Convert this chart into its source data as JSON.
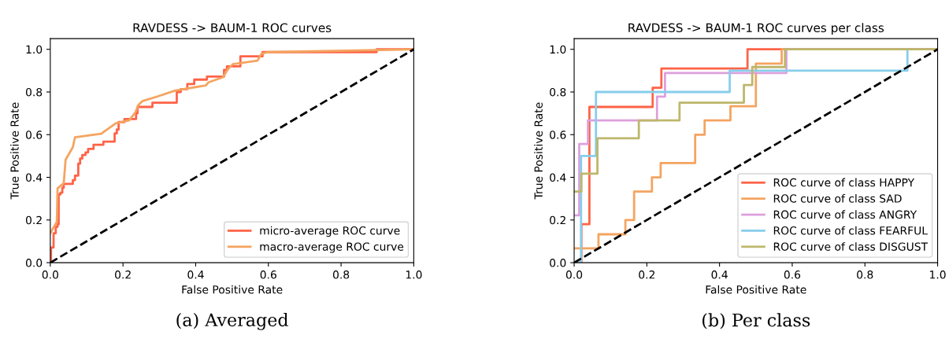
{
  "chart_data": [
    {
      "type": "line",
      "title": "RAVDESS -> BAUM-1 ROC curves",
      "xlabel": "False Positive Rate",
      "ylabel": "True Positive Rate",
      "annotations": [
        "(a) Averaged"
      ],
      "legend": "lower right",
      "grid": false,
      "xlim": [
        0,
        1
      ],
      "ylim": [
        0,
        1.05
      ],
      "xticks": [
        {
          "value": 0,
          "label": "0.0"
        },
        {
          "value": 0.2,
          "label": "0.2"
        },
        {
          "value": 0.4,
          "label": "0.4"
        },
        {
          "value": 0.6,
          "label": "0.6"
        },
        {
          "value": 0.8,
          "label": "0.8"
        },
        {
          "value": 1,
          "label": "1.0"
        }
      ],
      "yticks": [
        {
          "value": 0,
          "label": "0.0"
        },
        {
          "value": 0.2,
          "label": "0.2"
        },
        {
          "value": 0.4,
          "label": "0.4"
        },
        {
          "value": 0.6,
          "label": "0.6"
        },
        {
          "value": 0.8,
          "label": "0.8"
        },
        {
          "value": 1,
          "label": "1.0"
        }
      ],
      "series": [
        {
          "name": "micro-average ROC curve",
          "type": "step",
          "color": "#ff6347",
          "x": [
            0,
            0.002,
            0.009,
            0.015,
            0.02,
            0.023,
            0.028,
            0.033,
            0.037,
            0.062,
            0.068,
            0.077,
            0.082,
            0.088,
            0.097,
            0.104,
            0.119,
            0.146,
            0.177,
            0.183,
            0.188,
            0.204,
            0.236,
            0.24,
            0.281,
            0.348,
            0.359,
            0.377,
            0.396,
            0.431,
            0.478,
            0.486,
            0.523,
            0.584,
            0.898,
            1
          ],
          "values": [
            0,
            0.071,
            0.138,
            0.168,
            0.18,
            0.32,
            0.328,
            0.351,
            0.369,
            0.387,
            0.408,
            0.464,
            0.488,
            0.505,
            0.517,
            0.533,
            0.553,
            0.567,
            0.606,
            0.624,
            0.659,
            0.673,
            0.7,
            0.73,
            0.75,
            0.8,
            0.813,
            0.837,
            0.858,
            0.872,
            0.904,
            0.92,
            0.967,
            0.987,
            1,
            1
          ]
        },
        {
          "name": "macro-average ROC curve",
          "type": "line",
          "color": "#f4a460",
          "x": [
            0,
            0.018,
            0.02,
            0.037,
            0.042,
            0.062,
            0.068,
            0.14,
            0.18,
            0.217,
            0.235,
            0.242,
            0.253,
            0.293,
            0.344,
            0.428,
            0.435,
            0.475,
            0.489,
            0.502,
            0.57,
            0.581,
            0.599,
            1
          ],
          "values": [
            0.138,
            0.192,
            0.348,
            0.372,
            0.482,
            0.541,
            0.588,
            0.604,
            0.653,
            0.667,
            0.707,
            0.738,
            0.757,
            0.778,
            0.807,
            0.831,
            0.845,
            0.869,
            0.908,
            0.93,
            0.947,
            0.979,
            0.987,
            1
          ]
        },
        {
          "type": "line",
          "color": "#000000",
          "line_style": "dashed",
          "x": [
            0,
            1
          ],
          "values": [
            0,
            1
          ]
        }
      ]
    },
    {
      "type": "step",
      "title": "RAVDESS -> BAUM-1 ROC curves per class",
      "xlabel": "False Positive Rate",
      "ylabel": "True Positive Rate",
      "annotations": [
        "(b) Per class"
      ],
      "legend": "lower right",
      "grid": false,
      "xlim": [
        0,
        1
      ],
      "ylim": [
        0,
        1.05
      ],
      "xticks": [
        {
          "value": 0,
          "label": "0.0"
        },
        {
          "value": 0.2,
          "label": "0.2"
        },
        {
          "value": 0.4,
          "label": "0.4"
        },
        {
          "value": 0.6,
          "label": "0.6"
        },
        {
          "value": 0.8,
          "label": "0.8"
        },
        {
          "value": 1,
          "label": "1.0"
        }
      ],
      "yticks": [
        {
          "value": 0,
          "label": "0.0"
        },
        {
          "value": 0.2,
          "label": "0.2"
        },
        {
          "value": 0.4,
          "label": "0.4"
        },
        {
          "value": 0.6,
          "label": "0.6"
        },
        {
          "value": 0.8,
          "label": "0.8"
        },
        {
          "value": 1,
          "label": "1.0"
        }
      ],
      "series": [
        {
          "name": "ROC curve of class HAPPY",
          "color": "#ff6347",
          "x": [
            0,
            0.02,
            0.042,
            0.216,
            0.24,
            0.477,
            1
          ],
          "values": [
            0,
            0.18,
            0.73,
            0.82,
            0.91,
            1,
            1
          ]
        },
        {
          "name": "ROC curve of class SAD",
          "color": "#f4a460",
          "x": [
            0,
            0.067,
            0.141,
            0.165,
            0.214,
            0.238,
            0.333,
            0.359,
            0.43,
            0.5,
            0.571,
            1
          ],
          "values": [
            0.067,
            0.133,
            0.2,
            0.333,
            0.4,
            0.467,
            0.6,
            0.667,
            0.733,
            0.933,
            1,
            1
          ]
        },
        {
          "name": "ROC curve of class ANGRY",
          "color": "#dda0dd",
          "x": [
            0,
            0.014,
            0.038,
            0.228,
            0.25,
            0.584,
            1
          ],
          "values": [
            0.222,
            0.556,
            0.667,
            0.778,
            0.889,
            1,
            1
          ]
        },
        {
          "name": "ROC curve of class FEARFUL",
          "color": "#87ceeb",
          "x": [
            0,
            0.019,
            0.06,
            0.428,
            0.917
          ],
          "values": [
            0,
            0.5,
            0.8,
            0.9,
            1
          ]
        },
        {
          "name": "ROC curve of class DISGUST",
          "color": "#bdb76b",
          "x": [
            0,
            0.02,
            0.064,
            0.178,
            0.29,
            0.467,
            0.49,
            0.58,
            1
          ],
          "values": [
            0.333,
            0.417,
            0.583,
            0.667,
            0.75,
            0.833,
            0.917,
            1,
            1
          ]
        },
        {
          "type": "line",
          "color": "#000000",
          "line_style": "dashed",
          "x": [
            0,
            1
          ],
          "values": [
            0,
            1
          ]
        }
      ]
    }
  ]
}
